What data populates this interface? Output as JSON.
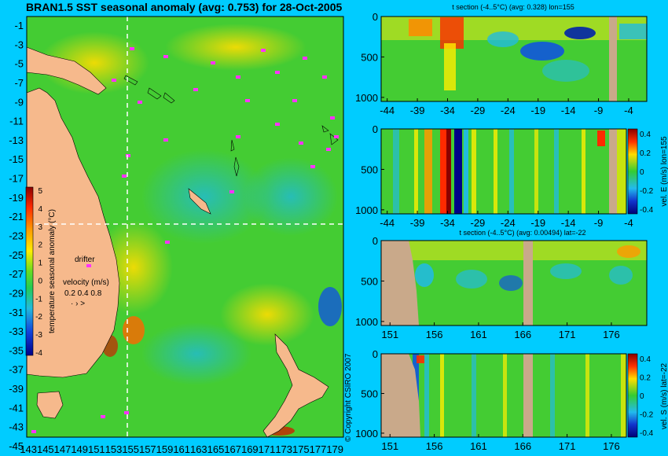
{
  "main_title": "BRAN1.5 SST seasonal anomaly (avg: 0.753) for 28-Oct-2005",
  "copyright": "© Copyright CSIRO 2007",
  "colors": {
    "background": "#00ccff",
    "land": "#f6b98c",
    "section_land": "#c9a98a",
    "drifter": "#ff33ff"
  },
  "map": {
    "lat_ticks": [
      "-1",
      "-3",
      "-5",
      "-7",
      "-9",
      "-11",
      "-13",
      "-15",
      "-17",
      "-19",
      "-21",
      "-23",
      "-25",
      "-27",
      "-29",
      "-31",
      "-33",
      "-35",
      "-37",
      "-39",
      "-41",
      "-43",
      "-45"
    ],
    "lon_ticks": [
      "143",
      "145",
      "147",
      "149",
      "151",
      "153",
      "155",
      "157",
      "159",
      "161",
      "163",
      "165",
      "167",
      "169",
      "171",
      "173",
      "175",
      "177",
      "179"
    ],
    "colorbar_label": "temperature seasonal anomaly (°C)",
    "colorbar_ticks": [
      "5",
      "4",
      "3",
      "2",
      "1",
      "0",
      "-1",
      "-2",
      "-3",
      "-4"
    ],
    "drifter_label": "drifter",
    "velocity_label": "velocity (m/s)",
    "velocity_values": "0.2 0.4 0.8"
  },
  "chart_data": [
    {
      "type": "heatmap",
      "title": "t section (-4..5°C) (avg: 0.328) lon=155",
      "x_ticks": [
        "-44",
        "-39",
        "-34",
        "-29",
        "-24",
        "-19",
        "-14",
        "-9",
        "-4"
      ],
      "y_ticks": [
        "0",
        "500",
        "1000"
      ],
      "xlim": [
        -45,
        -1
      ],
      "ylim": [
        1050,
        0
      ]
    },
    {
      "type": "heatmap",
      "title": "",
      "x_ticks": [
        "-44",
        "-39",
        "-34",
        "-29",
        "-24",
        "-19",
        "-14",
        "-9",
        "-4"
      ],
      "y_ticks": [
        "0",
        "500",
        "1000"
      ],
      "colorbar_label": "vel. E (m/s) lon=155",
      "colorbar_ticks": [
        "0.4",
        "0.2",
        "0",
        "-0.2",
        "-0.4"
      ],
      "xlim": [
        -45,
        -1
      ],
      "ylim": [
        1050,
        0
      ]
    },
    {
      "type": "heatmap",
      "title": "t section (-4..5°C) (avg: 0.00494) lat=-22",
      "x_ticks": [
        "151",
        "156",
        "161",
        "166",
        "171",
        "176"
      ],
      "y_ticks": [
        "0",
        "500",
        "1000"
      ],
      "xlim": [
        150,
        180
      ],
      "ylim": [
        1050,
        0
      ]
    },
    {
      "type": "heatmap",
      "title": "",
      "x_ticks": [
        "151",
        "156",
        "161",
        "166",
        "171",
        "176"
      ],
      "y_ticks": [
        "0",
        "500",
        "1000"
      ],
      "colorbar_label": "vel. S (m/s) lat=-22",
      "colorbar_ticks": [
        "0.4",
        "0.2",
        "0",
        "-0.2",
        "-0.4"
      ],
      "xlim": [
        150,
        180
      ],
      "ylim": [
        1050,
        0
      ]
    }
  ]
}
